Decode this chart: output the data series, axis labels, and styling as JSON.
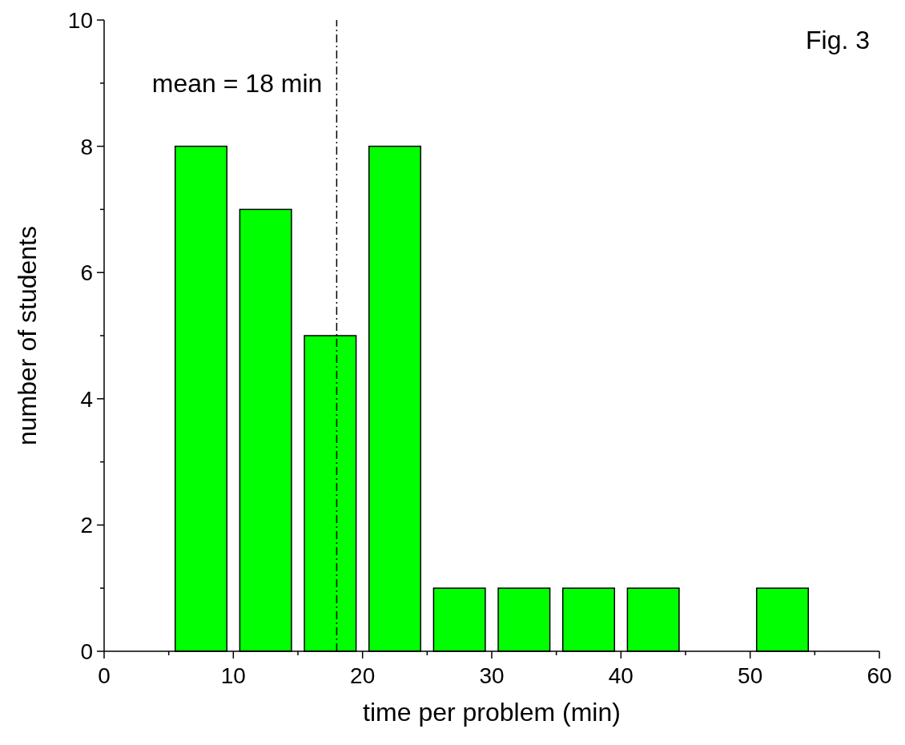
{
  "chart_data": {
    "type": "histogram",
    "xlabel": "time per problem (min)",
    "ylabel": "number of students",
    "bins": [
      5,
      10,
      15,
      20,
      25,
      30,
      35,
      40,
      45,
      50,
      55
    ],
    "values": [
      8,
      7,
      5,
      8,
      1,
      1,
      1,
      1,
      0,
      1
    ],
    "color": "#00ff00",
    "xlim": [
      0,
      60
    ],
    "xticks": [
      0,
      {
        "value": 5,
        "label": null
      },
      10,
      {
        "value": 15,
        "label": null
      },
      20,
      {
        "value": 25,
        "label": null
      },
      30,
      {
        "value": 35,
        "label": null
      },
      40,
      {
        "value": 45,
        "label": null
      },
      50,
      {
        "value": 55,
        "label": null
      },
      60
    ],
    "ylim": [
      0,
      10
    ],
    "yticks": [
      0,
      {
        "value": 1,
        "label": null
      },
      2,
      {
        "value": 3,
        "label": null
      },
      4,
      {
        "value": 5,
        "label": null
      },
      6,
      {
        "value": 7,
        "label": null
      },
      8,
      {
        "value": 9,
        "label": null
      },
      10
    ],
    "ref_lines": [
      {
        "axis": "x",
        "value": 18,
        "label": "mean = 18 min",
        "line_style": "dashdot",
        "color": "#000000"
      }
    ],
    "annotations": [
      "Fig. 3"
    ],
    "grid": false
  }
}
